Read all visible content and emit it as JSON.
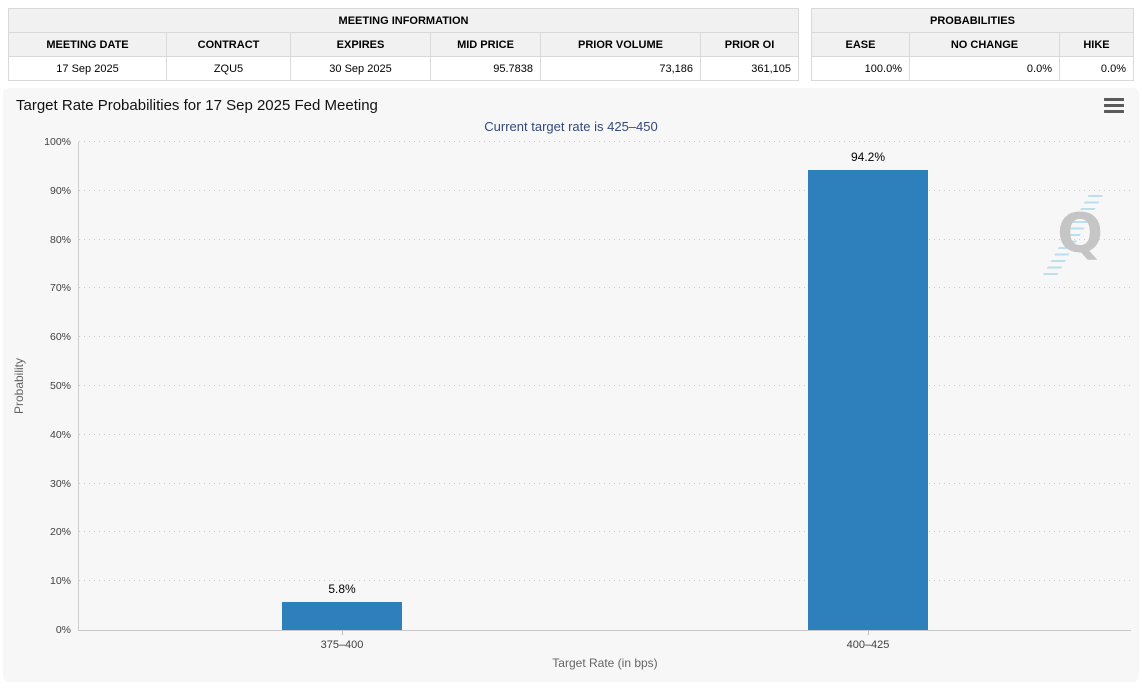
{
  "meeting_table": {
    "title": "MEETING INFORMATION",
    "headers": [
      "MEETING DATE",
      "CONTRACT",
      "EXPIRES",
      "MID PRICE",
      "PRIOR VOLUME",
      "PRIOR OI"
    ],
    "row": [
      "17 Sep 2025",
      "ZQU5",
      "30 Sep 2025",
      "95.7838",
      "73,186",
      "361,105"
    ]
  },
  "probabilities_table": {
    "title": "PROBABILITIES",
    "headers": [
      "EASE",
      "NO CHANGE",
      "HIKE"
    ],
    "row": [
      "100.0%",
      "0.0%",
      "0.0%"
    ]
  },
  "chart_data": {
    "type": "bar",
    "title": "Target Rate Probabilities for 17 Sep 2025 Fed Meeting",
    "subtitle": "Current target rate is 425–450",
    "categories": [
      "375–400",
      "400–425"
    ],
    "values": [
      5.8,
      94.2
    ],
    "data_labels": [
      "5.8%",
      "94.2%"
    ],
    "xlabel": "Target Rate (in bps)",
    "ylabel": "Probability",
    "ylim": [
      0,
      100
    ],
    "ytick_step": 10,
    "ytick_labels": [
      "0%",
      "10%",
      "20%",
      "30%",
      "40%",
      "50%",
      "60%",
      "70%",
      "80%",
      "90%",
      "100%"
    ],
    "bar_color": "#2E80BC",
    "grid": "horizontal-dotted",
    "legend": "none"
  },
  "watermark": {
    "letter": "Q"
  },
  "colors": {
    "panel_background": "#f7f7f7",
    "table_header_background": "#f1f1f1",
    "table_border": "#d9d9d9",
    "bar": "#2E80BC",
    "subtitle_text": "#33497b"
  }
}
